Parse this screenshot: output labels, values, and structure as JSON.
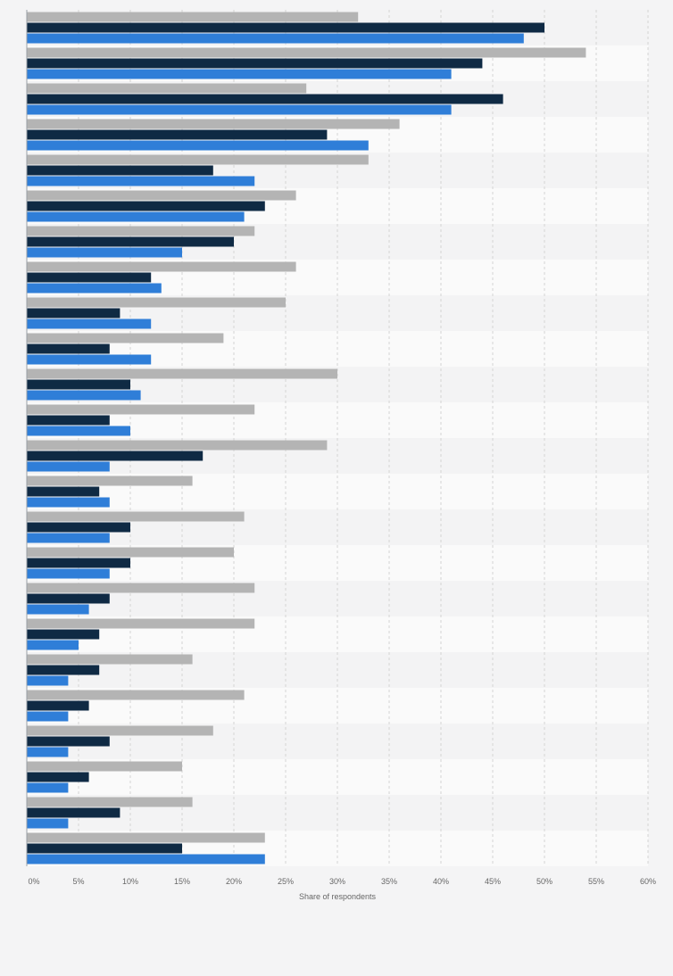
{
  "chart_data": {
    "type": "bar",
    "orientation": "horizontal",
    "xlabel": "Share of respondents",
    "x_ticks": [
      "0%",
      "5%",
      "10%",
      "15%",
      "20%",
      "25%",
      "30%",
      "35%",
      "40%",
      "45%",
      "50%",
      "55%",
      "60%"
    ],
    "xlim": [
      0,
      60
    ],
    "grid": true,
    "legend": "none",
    "categories": [
      "",
      "",
      "",
      "",
      "",
      "",
      "",
      "",
      "",
      "",
      "",
      "",
      "",
      "",
      "",
      "",
      "",
      "",
      "",
      "",
      "",
      "",
      "",
      ""
    ],
    "series": [
      {
        "color": "#b4b4b4",
        "values": [
          32,
          54,
          27,
          36,
          33,
          26,
          22,
          26,
          25,
          19,
          30,
          22,
          29,
          16,
          21,
          20,
          22,
          22,
          16,
          21,
          18,
          15,
          16,
          23
        ]
      },
      {
        "color": "#0f2a44",
        "values": [
          50,
          44,
          46,
          29,
          18,
          23,
          20,
          12,
          9,
          8,
          10,
          8,
          17,
          7,
          10,
          10,
          8,
          7,
          7,
          6,
          8,
          6,
          9,
          15
        ]
      },
      {
        "color": "#2f7ed8",
        "values": [
          48,
          41,
          41,
          33,
          22,
          21,
          15,
          13,
          12,
          12,
          11,
          10,
          8,
          8,
          8,
          8,
          6,
          5,
          4,
          4,
          4,
          4,
          4,
          23
        ]
      }
    ]
  }
}
